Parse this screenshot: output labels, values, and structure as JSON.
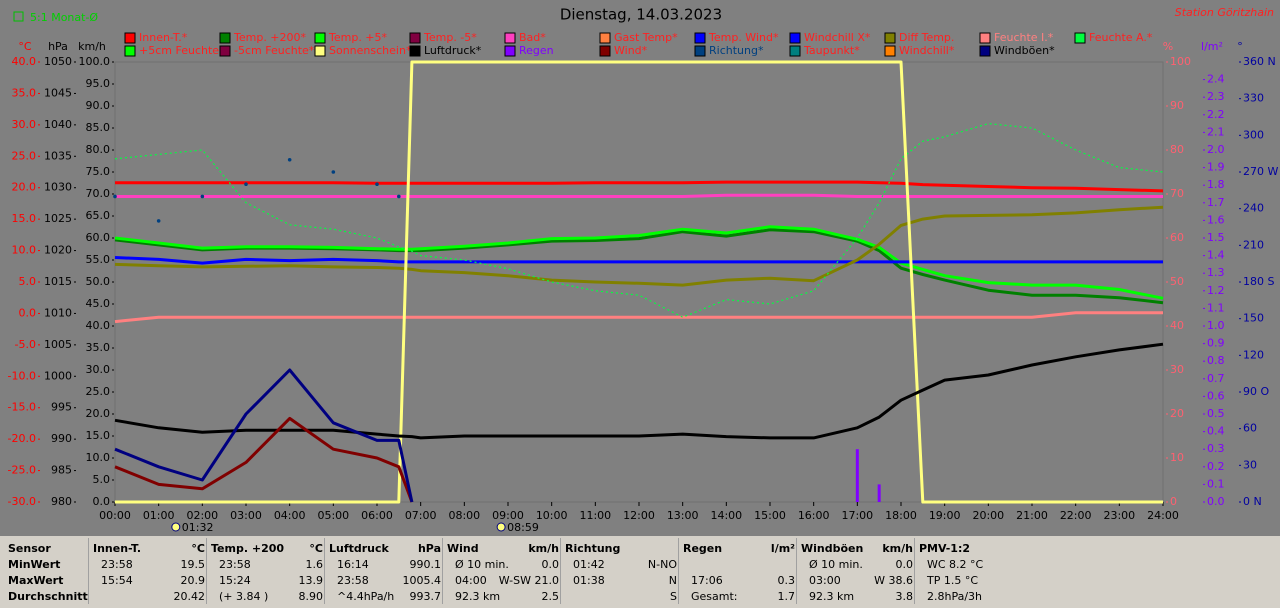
{
  "chart_data": {
    "type": "line",
    "title": "Dienstag, 14.03.2023",
    "subtitle": "5:1 Monat-Ø",
    "station": "Station Göritzhain",
    "x": [
      0,
      1,
      2,
      3,
      4,
      5,
      6,
      6.5,
      6.8,
      7,
      8,
      9,
      10,
      11,
      12,
      13,
      14,
      15,
      16,
      17,
      17.5,
      18,
      18.5,
      19,
      20,
      21,
      22,
      23,
      24
    ],
    "xlim": [
      0,
      24
    ],
    "xticks": [
      {
        "value": 0,
        "label": "00:00"
      },
      {
        "value": 1,
        "label": "01:00"
      },
      {
        "value": 2,
        "label": "02:00"
      },
      {
        "value": 3,
        "label": "03:00"
      },
      {
        "value": 4,
        "label": "04:00"
      },
      {
        "value": 5,
        "label": "05:00"
      },
      {
        "value": 6,
        "label": "06:00"
      },
      {
        "value": 7,
        "label": "07:00"
      },
      {
        "value": 8,
        "label": "08:00"
      },
      {
        "value": 9,
        "label": "09:00"
      },
      {
        "value": 10,
        "label": "10:00"
      },
      {
        "value": 11,
        "label": "11:00"
      },
      {
        "value": 12,
        "label": "12:00"
      },
      {
        "value": 13,
        "label": "13:00"
      },
      {
        "value": 14,
        "label": "14:00"
      },
      {
        "value": 15,
        "label": "15:00"
      },
      {
        "value": 16,
        "label": "16:00"
      },
      {
        "value": 17,
        "label": "17:00"
      },
      {
        "value": 18,
        "label": "18:00"
      },
      {
        "value": 19,
        "label": "19:00"
      },
      {
        "value": 20,
        "label": "20:00"
      },
      {
        "value": 21,
        "label": "21:00"
      },
      {
        "value": 22,
        "label": "22:00"
      },
      {
        "value": 23,
        "label": "23:00"
      },
      {
        "value": 24,
        "label": "24:00"
      }
    ],
    "annotations": [
      {
        "text": "01:32",
        "x": 1.53
      },
      {
        "text": "08:59",
        "x": 8.98
      }
    ],
    "axes": [
      {
        "label": "°C",
        "color": "#ff0000",
        "ylim": [
          -30,
          40
        ],
        "yticks": [
          {
            "value": -30,
            "label": "-30.0"
          },
          {
            "value": -25,
            "label": "-25.0"
          },
          {
            "value": -20,
            "label": "-20.0"
          },
          {
            "value": -15,
            "label": "-15.0"
          },
          {
            "value": -10,
            "label": "-10.0"
          },
          {
            "value": -5,
            "label": "-5.0"
          },
          {
            "value": 0,
            "label": "0.0"
          },
          {
            "value": 5,
            "label": "5.0"
          },
          {
            "value": 10,
            "label": "10.0"
          },
          {
            "value": 15,
            "label": "15.0"
          },
          {
            "value": 20,
            "label": "20.0"
          },
          {
            "value": 25,
            "label": "25.0"
          },
          {
            "value": 30,
            "label": "30.0"
          },
          {
            "value": 35,
            "label": "35.0"
          },
          {
            "value": 40,
            "label": "40.0"
          }
        ]
      },
      {
        "label": "hPa",
        "color": "#000000",
        "ylim": [
          980,
          1050
        ],
        "yticks": [
          980,
          985,
          990,
          995,
          1000,
          1005,
          1010,
          1015,
          1020,
          1025,
          1030,
          1035,
          1040,
          1045,
          1050
        ]
      },
      {
        "label": "km/h",
        "color": "#000000",
        "ylim": [
          0,
          100
        ],
        "yticks": [
          {
            "value": 0,
            "label": "0.0"
          },
          {
            "value": 5,
            "label": "5.0"
          },
          {
            "value": 10,
            "label": "10.0"
          },
          {
            "value": 15,
            "label": "15.0"
          },
          {
            "value": 20,
            "label": "20.0"
          },
          {
            "value": 25,
            "label": "25.0"
          },
          {
            "value": 30,
            "label": "30.0"
          },
          {
            "value": 35,
            "label": "35.0"
          },
          {
            "value": 40,
            "label": "40.0"
          },
          {
            "value": 45,
            "label": "45.0"
          },
          {
            "value": 50,
            "label": "50.0"
          },
          {
            "value": 55,
            "label": "55.0"
          },
          {
            "value": 60,
            "label": "60.0"
          },
          {
            "value": 65,
            "label": "65.0"
          },
          {
            "value": 70,
            "label": "70.0"
          },
          {
            "value": 75,
            "label": "75.0"
          },
          {
            "value": 80,
            "label": "80.0"
          },
          {
            "value": 85,
            "label": "85.0"
          },
          {
            "value": 90,
            "label": "90.0"
          },
          {
            "value": 95,
            "label": "95.0"
          },
          {
            "value": 100,
            "label": "100.0"
          }
        ]
      },
      {
        "label": "%",
        "color": "#ff6070",
        "ylim": [
          0,
          100
        ],
        "yticks": [
          0,
          10,
          20,
          30,
          40,
          50,
          60,
          70,
          80,
          90,
          100
        ]
      },
      {
        "label": "l/m²",
        "color": "#8000ff",
        "ylim": [
          0,
          2.5
        ],
        "yticks": [
          {
            "value": 0,
            "label": "0.0"
          },
          0.1,
          0.2,
          0.3,
          0.4,
          0.5,
          0.6,
          0.7,
          0.8,
          0.9,
          {
            "value": 1,
            "label": "1.0"
          },
          1.1,
          1.2,
          1.3,
          1.4,
          1.5,
          1.6,
          1.7,
          1.8,
          1.9,
          {
            "value": 2,
            "label": "2.0"
          },
          2.1,
          2.2,
          2.3,
          2.4
        ]
      },
      {
        "label": "°",
        "color": "#0000a0",
        "ylim": [
          0,
          360
        ],
        "yticks": [
          {
            "value": 0,
            "label": "0 N"
          },
          30,
          60,
          {
            "value": 90,
            "label": "90 O"
          },
          120,
          150,
          {
            "value": 180,
            "label": "180 S"
          },
          210,
          240,
          {
            "value": 270,
            "label": "270 W"
          },
          300,
          330,
          {
            "value": 360,
            "label": "360 N"
          }
        ]
      }
    ],
    "series": [
      {
        "name": "Innen-T.*",
        "color": "#ff0000",
        "label_color": "#ff2020",
        "axis": 0,
        "values": [
          20.8,
          20.8,
          20.8,
          20.8,
          20.8,
          20.8,
          20.7,
          20.7,
          20.7,
          20.7,
          20.7,
          20.7,
          20.7,
          20.8,
          20.8,
          20.8,
          20.9,
          20.9,
          20.9,
          20.9,
          20.8,
          20.7,
          20.5,
          20.4,
          20.2,
          20.0,
          19.9,
          19.7,
          19.5
        ]
      },
      {
        "name": "Temp. +200*",
        "color": "#008000",
        "label_color": "#ff2020",
        "axis": 0,
        "values": [
          11.7,
          10.9,
          10.1,
          10.4,
          10.4,
          10.3,
          10.1,
          10.0,
          10.0,
          10.0,
          10.4,
          10.9,
          11.5,
          11.6,
          11.9,
          13.0,
          12.3,
          13.3,
          13.0,
          11.5,
          10.0,
          7.2,
          6.2,
          5.3,
          3.7,
          2.9,
          2.9,
          2.5,
          1.7
        ]
      },
      {
        "name": "Temp. +5*",
        "color": "#00ff00",
        "label_color": "#ff2020",
        "axis": 0,
        "values": [
          12.0,
          11.2,
          10.4,
          10.6,
          10.6,
          10.5,
          10.3,
          10.2,
          10.2,
          10.3,
          10.7,
          11.2,
          11.9,
          12.0,
          12.4,
          13.4,
          12.8,
          13.8,
          13.4,
          11.8,
          10.5,
          8.0,
          7.0,
          6.0,
          4.9,
          4.5,
          4.5,
          3.8,
          2.4
        ]
      },
      {
        "name": "Temp. -5*",
        "color": "#800040",
        "label_color": "#ff2020"
      },
      {
        "name": "Bad*",
        "color": "#ff40c0",
        "label_color": "#ff2020",
        "axis": 0,
        "values": [
          18.6,
          18.6,
          18.6,
          18.6,
          18.6,
          18.6,
          18.6,
          18.6,
          18.6,
          18.6,
          18.6,
          18.6,
          18.6,
          18.6,
          18.6,
          18.6,
          18.8,
          18.8,
          18.8,
          18.6,
          18.6,
          18.6,
          18.6,
          18.6,
          18.6,
          18.6,
          18.6,
          18.6,
          18.6
        ]
      },
      {
        "name": "Gast Temp*",
        "color": "#ff8040",
        "label_color": "#ff2020"
      },
      {
        "name": "Temp. Wind*",
        "color": "#0000ff",
        "label_color": "#ff2020"
      },
      {
        "name": "Windchill X*",
        "color": "#0000ff",
        "label_color": "#ff2020",
        "axis": 0,
        "values": [
          8.9,
          8.6,
          8.0,
          8.6,
          8.4,
          8.6,
          8.4,
          8.2,
          8.2,
          8.2,
          8.2,
          8.2,
          8.2,
          8.2,
          8.2,
          8.2,
          8.2,
          8.2,
          8.2,
          8.2,
          8.2,
          8.2,
          8.2,
          8.2,
          8.2,
          8.2,
          8.2,
          8.2,
          8.2
        ]
      },
      {
        "name": "Diff Temp.",
        "color": "#808000",
        "label_color": "#ff2020",
        "axis": 0,
        "values": [
          7.8,
          7.6,
          7.4,
          7.5,
          7.6,
          7.4,
          7.3,
          7.2,
          7.0,
          6.8,
          6.5,
          6.0,
          5.3,
          5.0,
          4.8,
          4.5,
          5.3,
          5.6,
          5.2,
          8.5,
          11.0,
          14.0,
          15.0,
          15.5,
          15.6,
          15.7,
          16.0,
          16.5,
          16.9
        ]
      },
      {
        "name": "Feuchte I.*",
        "color": "#ff8080",
        "label_color": "#ff8080",
        "axis": 3,
        "values": [
          41,
          42,
          42,
          42,
          42,
          42,
          42,
          42,
          42,
          42,
          42,
          42,
          42,
          42,
          42,
          42,
          42,
          42,
          42,
          42,
          42,
          42,
          42,
          42,
          42,
          42,
          43,
          43,
          43
        ]
      },
      {
        "name": "Feuchte A.*",
        "color": "#00ff40",
        "label_color": "#ff2020",
        "axis": 3,
        "dashed": true,
        "values": [
          78,
          79,
          80,
          68,
          63,
          62,
          60,
          58,
          57,
          56,
          55,
          53,
          50,
          48,
          47,
          42,
          46,
          45,
          48,
          60,
          68,
          78,
          82,
          83,
          86,
          85,
          80,
          76,
          75
        ]
      },
      {
        "name": "+5cm Feuchte*",
        "color": "#00ff00",
        "label_color": "#ff2020"
      },
      {
        "name": "-5cm Feuchte*",
        "color": "#800040",
        "label_color": "#ff2020"
      },
      {
        "name": "Sonnenschein*",
        "color": "#ffff80",
        "label_color": "#ff2020",
        "axis": 3,
        "values": [
          0,
          0,
          0,
          0,
          0,
          0,
          0,
          0,
          100,
          100,
          100,
          100,
          100,
          100,
          100,
          100,
          100,
          100,
          100,
          100,
          100,
          100,
          0,
          0,
          0,
          0,
          0,
          0,
          0
        ]
      },
      {
        "name": "Luftdruck*",
        "color": "#000000",
        "label_color": "#000000",
        "axis": 1,
        "values": [
          993.0,
          991.8,
          991.1,
          991.4,
          991.4,
          991.4,
          990.8,
          990.5,
          990.4,
          990.2,
          990.5,
          990.5,
          990.5,
          990.5,
          990.5,
          990.8,
          990.4,
          990.2,
          990.2,
          991.8,
          993.5,
          996.2,
          997.8,
          999.4,
          1000.2,
          1001.8,
          1003.1,
          1004.2,
          1005.1
        ]
      },
      {
        "name": "Regen",
        "color": "#8000ff",
        "label_color": "#8000ff",
        "axis": 4,
        "style": "bars",
        "values": [
          0,
          0,
          0,
          0,
          0,
          0,
          0,
          0,
          0,
          0,
          0,
          0,
          0,
          0,
          0,
          0,
          0,
          0,
          0,
          0.3,
          0.1,
          0,
          0,
          0,
          0,
          0,
          0,
          0,
          0
        ]
      },
      {
        "name": "Wind*",
        "color": "#800000",
        "label_color": "#ff2020",
        "axis": 2,
        "values": [
          8,
          4,
          3,
          9,
          19,
          12,
          10,
          8,
          0,
          null,
          null,
          null,
          null,
          null,
          null,
          null,
          null,
          null,
          null,
          null,
          null,
          null,
          null,
          null,
          null,
          null,
          null,
          null,
          null
        ]
      },
      {
        "name": "Richtung*",
        "color": "#004080",
        "label_color": "#004080",
        "axis": 5,
        "style": "dots",
        "values": [
          250,
          230,
          250,
          260,
          280,
          270,
          260,
          250,
          null,
          null,
          null,
          null,
          null,
          null,
          null,
          null,
          null,
          null,
          null,
          null,
          null,
          null,
          null,
          null,
          null,
          null,
          null,
          null,
          null
        ]
      },
      {
        "name": "Taupunkt*",
        "color": "#008080",
        "label_color": "#ff2020"
      },
      {
        "name": "Windchill*",
        "color": "#ff8000",
        "label_color": "#ff2020"
      },
      {
        "name": "Windböen*",
        "color": "#000080",
        "label_color": "#000000",
        "axis": 2,
        "values": [
          12,
          8,
          5,
          20,
          30,
          18,
          14,
          14,
          0,
          null,
          null,
          null,
          null,
          null,
          null,
          null,
          null,
          null,
          null,
          null,
          null,
          null,
          null,
          null,
          null,
          null,
          null,
          null,
          null
        ]
      }
    ]
  },
  "stats": {
    "row_labels": [
      "Sensor",
      "MinWert",
      "MaxWert",
      "Durchschnitt"
    ],
    "groups": [
      {
        "title": "Innen-T.",
        "unit": "°C",
        "cells": [
          {
            "left": "23:58",
            "right": "19.5"
          },
          {
            "left": "15:54",
            "right": "20.9"
          },
          {
            "right": "20.42"
          }
        ]
      },
      {
        "title": "Temp. +200",
        "unit": "°C",
        "cells": [
          {
            "left": "23:58",
            "right": "1.6"
          },
          {
            "left": "15:24",
            "right": "13.9"
          },
          {
            "left": "(+ 3.84 )",
            "right": "8.90"
          }
        ]
      },
      {
        "title": "Luftdruck",
        "unit": "hPa",
        "cells": [
          {
            "left": "16:14",
            "right": "990.1"
          },
          {
            "left": "23:58",
            "right": "1005.4"
          },
          {
            "left": "^4.4hPa/h",
            "right": "993.7"
          }
        ]
      },
      {
        "title": "Wind",
        "unit": "km/h",
        "cells": [
          {
            "left": "Ø 10 min.",
            "right": "0.0"
          },
          {
            "left": "04:00",
            "right": "W-SW 21.0"
          },
          {
            "left": "92.3 km",
            "right": "2.5"
          }
        ]
      },
      {
        "title": "Richtung",
        "cells": [
          {
            "left": "01:42",
            "right": "N-NO"
          },
          {
            "left": "01:38",
            "right": "N"
          },
          {
            "right": "S"
          }
        ]
      },
      {
        "title": "Regen",
        "unit": "l/m²",
        "cells": [
          {},
          {
            "left": "17:06",
            "right": "0.3"
          },
          {
            "left": "Gesamt:",
            "right": "1.7"
          }
        ]
      },
      {
        "title": "Windböen",
        "unit": "km/h",
        "cells": [
          {
            "left": "Ø 10 min.",
            "right": "0.0"
          },
          {
            "left": "03:00",
            "right": "W 38.6"
          },
          {
            "left": "92.3 km",
            "right": "3.8"
          }
        ]
      },
      {
        "title": "PMV-1:2",
        "cells": [
          {
            "left": "WC 8.2 °C"
          },
          {
            "left": "TP 1.5 °C"
          },
          {
            "left": "2.8hPa/3h"
          }
        ]
      }
    ]
  }
}
